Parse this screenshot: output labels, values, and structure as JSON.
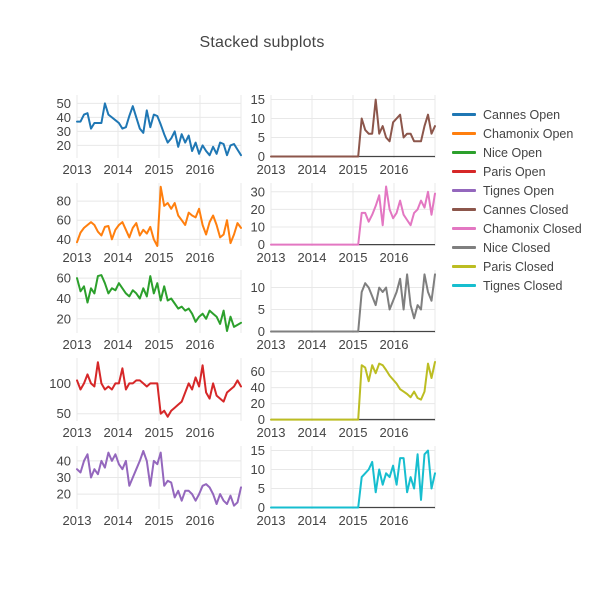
{
  "title": "Stacked subplots",
  "x_axis_note": "monthly points, Jan 2013 - Dec 2016",
  "colors": {
    "blue": "#1f77b4",
    "orange": "#ff7f0e",
    "green": "#2ca02c",
    "red": "#d62728",
    "purple": "#9467bd",
    "brown": "#8c564b",
    "pink": "#e377c2",
    "gray": "#7f7f7f",
    "olive": "#bcbd22",
    "cyan": "#17becf",
    "grid": "#e8e8e8",
    "zeroline": "#444444",
    "text": "#444444"
  },
  "chart_data": [
    {
      "type": "line",
      "name": "Cannes Open",
      "color": "#1f77b4",
      "row": 0,
      "col": 0,
      "x_ticks": [
        "2013",
        "2014",
        "2015",
        "2016"
      ],
      "y_ticks": [
        20,
        30,
        40,
        50
      ],
      "ylim": [
        11,
        56
      ],
      "values": [
        37,
        37,
        42,
        43,
        32,
        36,
        36,
        36,
        50,
        42,
        40,
        38,
        36,
        32,
        33,
        41,
        48,
        40,
        32,
        29,
        45,
        33,
        42,
        41,
        35,
        28,
        22,
        25,
        30,
        19,
        28,
        22,
        27,
        16,
        22,
        14,
        20,
        16,
        13,
        19,
        14,
        22,
        21,
        13,
        20,
        21,
        17,
        13
      ]
    },
    {
      "type": "line",
      "name": "Chamonix Open",
      "color": "#ff7f0e",
      "row": 1,
      "col": 0,
      "x_ticks": [
        "2013",
        "2014",
        "2015",
        "2016"
      ],
      "y_ticks": [
        40,
        60,
        80
      ],
      "ylim": [
        33,
        99
      ],
      "values": [
        37,
        47,
        52,
        55,
        58,
        55,
        48,
        44,
        53,
        54,
        40,
        50,
        55,
        58,
        50,
        42,
        52,
        57,
        44,
        50,
        46,
        53,
        40,
        33,
        95,
        75,
        78,
        72,
        78,
        65,
        60,
        55,
        68,
        65,
        63,
        72,
        55,
        45,
        58,
        65,
        55,
        42,
        45,
        60,
        36,
        45,
        57,
        52
      ]
    },
    {
      "type": "line",
      "name": "Nice Open",
      "color": "#2ca02c",
      "row": 2,
      "col": 0,
      "x_ticks": [
        "2013",
        "2014",
        "2015",
        "2016"
      ],
      "y_ticks": [
        20,
        40,
        60
      ],
      "ylim": [
        6,
        68
      ],
      "values": [
        60,
        47,
        52,
        36,
        50,
        45,
        62,
        63,
        55,
        45,
        50,
        48,
        55,
        50,
        45,
        42,
        48,
        45,
        40,
        50,
        42,
        62,
        45,
        55,
        38,
        52,
        38,
        40,
        35,
        30,
        32,
        28,
        30,
        25,
        17,
        22,
        25,
        20,
        28,
        25,
        22,
        15,
        28,
        8,
        22,
        12,
        14,
        16
      ]
    },
    {
      "type": "line",
      "name": "Paris Open",
      "color": "#d62728",
      "row": 3,
      "col": 0,
      "x_ticks": [
        "2013",
        "2014",
        "2015",
        "2016"
      ],
      "y_ticks": [
        50,
        100
      ],
      "ylim": [
        38,
        142
      ],
      "values": [
        105,
        90,
        100,
        115,
        100,
        95,
        135,
        100,
        90,
        95,
        90,
        100,
        100,
        125,
        90,
        100,
        100,
        105,
        105,
        100,
        95,
        100,
        100,
        100,
        50,
        55,
        45,
        55,
        60,
        65,
        70,
        85,
        100,
        90,
        110,
        95,
        130,
        85,
        75,
        100,
        80,
        75,
        70,
        85,
        90,
        95,
        105,
        95
      ]
    },
    {
      "type": "line",
      "name": "Tignes Open",
      "color": "#9467bd",
      "row": 4,
      "col": 0,
      "x_ticks": [
        "2013",
        "2014",
        "2015",
        "2016"
      ],
      "y_ticks": [
        20,
        30,
        40
      ],
      "ylim": [
        11,
        49
      ],
      "values": [
        35,
        33,
        40,
        44,
        30,
        35,
        32,
        40,
        36,
        45,
        40,
        44,
        38,
        35,
        40,
        25,
        30,
        35,
        40,
        46,
        40,
        25,
        40,
        38,
        45,
        25,
        28,
        27,
        18,
        22,
        16,
        22,
        22,
        20,
        16,
        20,
        25,
        26,
        24,
        20,
        14,
        20,
        16,
        14,
        19,
        13,
        15,
        24
      ]
    },
    {
      "type": "line",
      "name": "Cannes Closed",
      "color": "#8c564b",
      "row": 0,
      "col": 1,
      "x_ticks": [
        "2013",
        "2014",
        "2015",
        "2016"
      ],
      "y_ticks": [
        0,
        5,
        10,
        15
      ],
      "ylim": [
        -0.4,
        16.2
      ],
      "values": [
        0,
        0,
        0,
        0,
        0,
        0,
        0,
        0,
        0,
        0,
        0,
        0,
        0,
        0,
        0,
        0,
        0,
        0,
        0,
        0,
        0,
        0,
        0,
        0,
        0,
        0,
        10,
        7,
        6,
        6,
        15,
        6,
        8,
        5,
        4,
        9,
        10,
        11,
        5,
        6,
        6,
        4,
        4,
        4,
        8,
        11,
        6,
        8
      ]
    },
    {
      "type": "line",
      "name": "Chamonix Closed",
      "color": "#e377c2",
      "row": 1,
      "col": 1,
      "x_ticks": [
        "2013",
        "2014",
        "2015",
        "2016"
      ],
      "y_ticks": [
        0,
        10,
        20,
        30
      ],
      "ylim": [
        -0.8,
        35
      ],
      "values": [
        0,
        0,
        0,
        0,
        0,
        0,
        0,
        0,
        0,
        0,
        0,
        0,
        0,
        0,
        0,
        0,
        0,
        0,
        0,
        0,
        0,
        0,
        0,
        0,
        0,
        0,
        18,
        18,
        13,
        17,
        22,
        28,
        11,
        33,
        20,
        15,
        18,
        25,
        17,
        14,
        11,
        18,
        20,
        25,
        21,
        30,
        17,
        29
      ]
    },
    {
      "type": "line",
      "name": "Nice Closed",
      "color": "#7f7f7f",
      "row": 2,
      "col": 1,
      "x_ticks": [
        "2013",
        "2014",
        "2015",
        "2016"
      ],
      "y_ticks": [
        0,
        5,
        10
      ],
      "ylim": [
        -0.35,
        14
      ],
      "values": [
        0,
        0,
        0,
        0,
        0,
        0,
        0,
        0,
        0,
        0,
        0,
        0,
        0,
        0,
        0,
        0,
        0,
        0,
        0,
        0,
        0,
        0,
        0,
        0,
        0,
        0,
        9,
        11,
        10,
        8,
        6,
        10,
        9,
        10,
        5,
        7,
        9,
        12,
        5,
        13,
        6,
        3,
        6,
        5,
        13,
        9,
        7,
        13
      ]
    },
    {
      "type": "line",
      "name": "Paris Closed",
      "color": "#bcbd22",
      "row": 3,
      "col": 1,
      "x_ticks": [
        "2013",
        "2014",
        "2015",
        "2016"
      ],
      "y_ticks": [
        0,
        20,
        40,
        60
      ],
      "ylim": [
        -1.8,
        77
      ],
      "values": [
        0,
        0,
        0,
        0,
        0,
        0,
        0,
        0,
        0,
        0,
        0,
        0,
        0,
        0,
        0,
        0,
        0,
        0,
        0,
        0,
        0,
        0,
        0,
        0,
        0,
        0,
        68,
        65,
        48,
        68,
        58,
        70,
        68,
        62,
        55,
        50,
        45,
        38,
        35,
        32,
        28,
        35,
        27,
        25,
        35,
        70,
        52,
        72
      ]
    },
    {
      "type": "line",
      "name": "Tignes Closed",
      "color": "#17becf",
      "row": 4,
      "col": 1,
      "x_ticks": [
        "2013",
        "2014",
        "2015",
        "2016"
      ],
      "y_ticks": [
        0,
        5,
        10,
        15
      ],
      "ylim": [
        -0.4,
        16.2
      ],
      "values": [
        0,
        0,
        0,
        0,
        0,
        0,
        0,
        0,
        0,
        0,
        0,
        0,
        0,
        0,
        0,
        0,
        0,
        0,
        0,
        0,
        0,
        0,
        0,
        0,
        0,
        0,
        8,
        9,
        10,
        12,
        4,
        10,
        6,
        9,
        8,
        11,
        6,
        13,
        13,
        4,
        8,
        5,
        14,
        2,
        14,
        15,
        5,
        9
      ]
    }
  ]
}
